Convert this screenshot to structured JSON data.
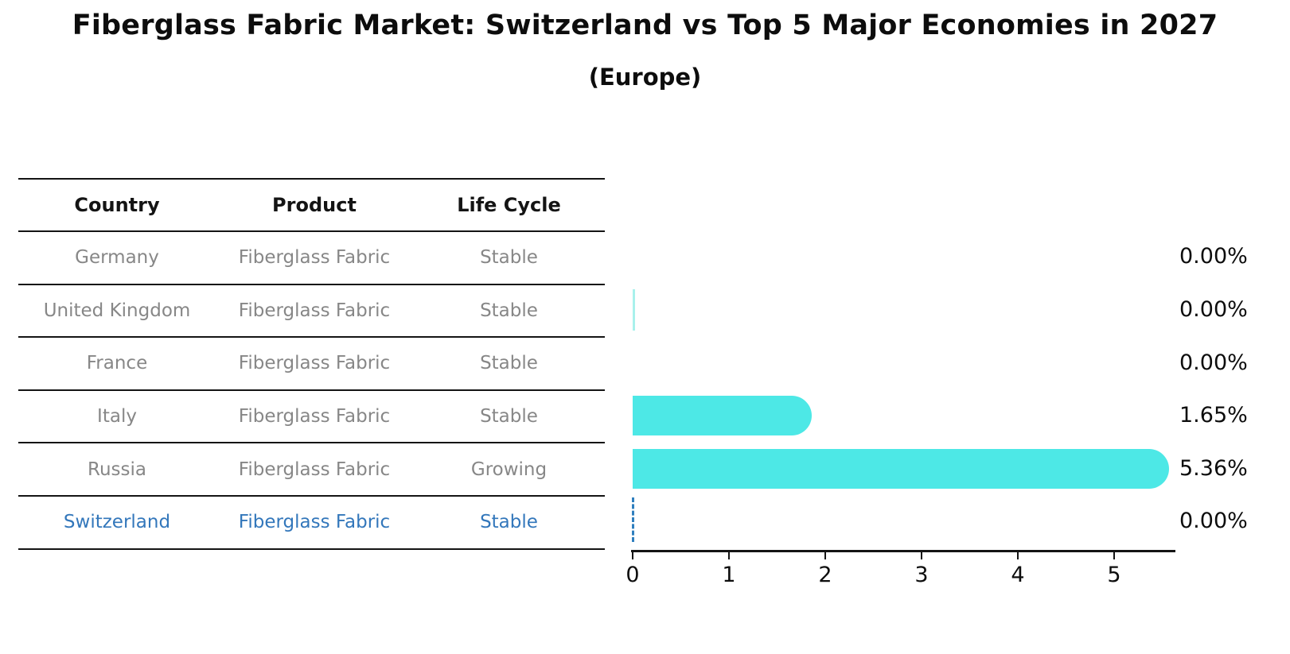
{
  "title": "Fiberglass Fabric Market: Switzerland vs Top 5 Major Economies in 2027",
  "subtitle": "(Europe)",
  "table": {
    "headers": [
      "Country",
      "Product",
      "Life Cycle"
    ],
    "rows": [
      {
        "country": "Germany",
        "product": "Fiberglass Fabric",
        "life_cycle": "Stable",
        "highlight": false
      },
      {
        "country": "United Kingdom",
        "product": "Fiberglass Fabric",
        "life_cycle": "Stable",
        "highlight": false
      },
      {
        "country": "France",
        "product": "Fiberglass Fabric",
        "life_cycle": "Stable",
        "highlight": false
      },
      {
        "country": "Italy",
        "product": "Fiberglass Fabric",
        "life_cycle": "Stable",
        "highlight": false
      },
      {
        "country": "Russia",
        "product": "Fiberglass Fabric",
        "life_cycle": "Growing",
        "highlight": false
      },
      {
        "country": "Switzerland",
        "product": "Fiberglass Fabric",
        "life_cycle": "Stable",
        "highlight": true
      }
    ]
  },
  "chart_data": {
    "type": "bar",
    "orientation": "horizontal",
    "title": "Fiberglass Fabric Market: Switzerland vs Top 5 Major Economies in 2027 (Europe)",
    "categories": [
      "Germany",
      "United Kingdom",
      "France",
      "Italy",
      "Russia",
      "Switzerland"
    ],
    "values": [
      0.0,
      0.0,
      0.0,
      1.65,
      5.36,
      0.0
    ],
    "value_labels": [
      "0.00%",
      "0.00%",
      "0.00%",
      "1.65%",
      "5.36%",
      "0.00%"
    ],
    "xlabel": "",
    "ylabel": "",
    "xticks": [
      "0",
      "1",
      "2",
      "3",
      "4",
      "5"
    ],
    "xlim": [
      0,
      5.65
    ],
    "grid": false,
    "legend": false,
    "bar_color": "#4DE8E6",
    "zero_sliver_color": "#A9F1EC",
    "zero_sliver_index": 1,
    "dashed_marker_index": 5,
    "dashed_marker_color": "#2F7FBE",
    "highlight_text_color": "#3377BB"
  }
}
